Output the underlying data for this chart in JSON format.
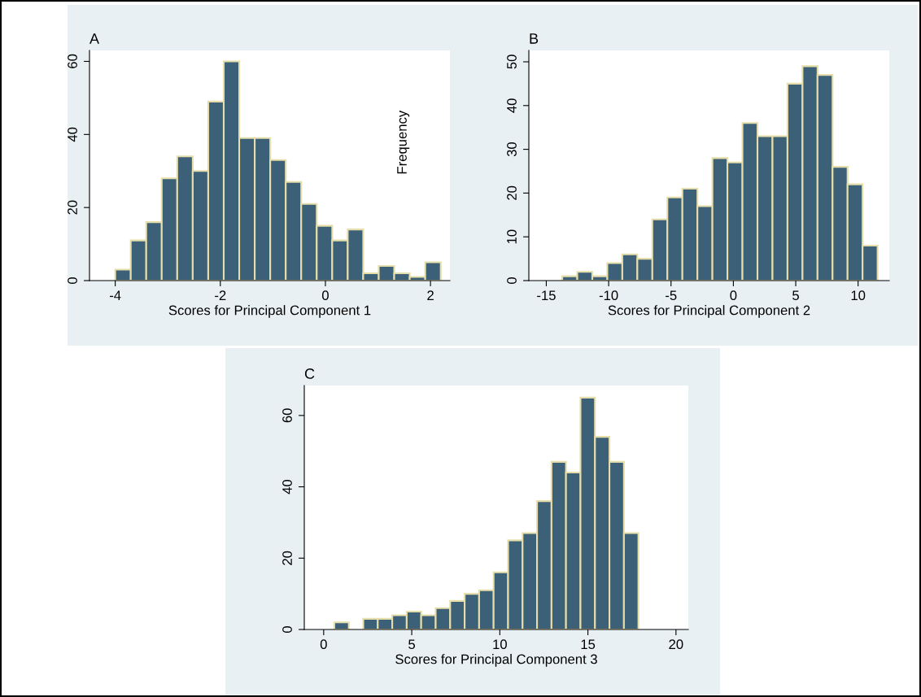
{
  "chart_data": [
    {
      "type": "histogram",
      "title": "A",
      "xlabel": "Scores for Principal Component 1",
      "annotations": [
        "Frequency"
      ],
      "bins": [
        -4.0,
        -3.705,
        -3.41,
        -3.115,
        -2.82,
        -2.525,
        -2.23,
        -1.935,
        -1.64,
        -1.345,
        -1.05,
        -0.755,
        -0.46,
        -0.165,
        0.13,
        0.425,
        0.72,
        1.015,
        1.31,
        1.605,
        1.9,
        2.195
      ],
      "values": [
        3,
        11,
        16,
        28,
        34,
        30,
        49,
        60,
        39,
        39,
        33,
        27,
        21,
        15,
        11,
        14,
        2,
        4,
        2,
        1,
        5
      ],
      "color": "#3d6079",
      "xlim": [
        -4.49,
        2.37
      ],
      "ylim": [
        0,
        63
      ],
      "xticks": [
        -4,
        -2,
        0,
        2
      ],
      "yticks": [
        0,
        20,
        40,
        60
      ],
      "grid": false,
      "legend": false
    },
    {
      "type": "histogram",
      "title": "B",
      "xlabel": "Scores for Principal Component 2",
      "bins": [
        -13.72,
        -12.516,
        -11.312,
        -10.108,
        -8.904,
        -7.7,
        -6.496,
        -5.292,
        -4.088,
        -2.884,
        -1.68,
        -0.476,
        0.728,
        1.932,
        3.136,
        4.34,
        5.544,
        6.748,
        7.952,
        9.156,
        10.36,
        11.564
      ],
      "values": [
        1,
        2,
        1,
        4,
        6,
        5,
        14,
        19,
        21,
        17,
        28,
        27,
        36,
        33,
        33,
        45,
        49,
        47,
        26,
        22,
        8
      ],
      "color": "#3d6079",
      "xlim": [
        -16.4,
        12.5
      ],
      "ylim": [
        0,
        52.6
      ],
      "xticks": [
        -15,
        -10,
        -5,
        0,
        5,
        10
      ],
      "yticks": [
        0,
        10,
        20,
        30,
        40,
        50
      ],
      "grid": false,
      "legend": false
    },
    {
      "type": "histogram",
      "title": "C",
      "xlabel": "Scores for Principal Component 3",
      "bins": [
        0.605,
        1.427,
        2.249,
        3.071,
        3.893,
        4.715,
        5.537,
        6.359,
        7.181,
        8.003,
        8.825,
        9.647,
        10.469,
        11.291,
        12.113,
        12.935,
        13.757,
        14.579,
        15.401,
        16.223,
        17.045,
        17.867
      ],
      "values": [
        2,
        0,
        3,
        3,
        4,
        5,
        4,
        6,
        8,
        10,
        11,
        16,
        25,
        27,
        36,
        47,
        44,
        65,
        54,
        47,
        27
      ],
      "color": "#3d6079",
      "xlim": [
        -1.1,
        20.7
      ],
      "ylim": [
        0,
        68.4
      ],
      "xticks": [
        0,
        5,
        10,
        15,
        20
      ],
      "yticks": [
        0,
        20,
        40,
        60
      ],
      "grid": false,
      "legend": false
    }
  ]
}
